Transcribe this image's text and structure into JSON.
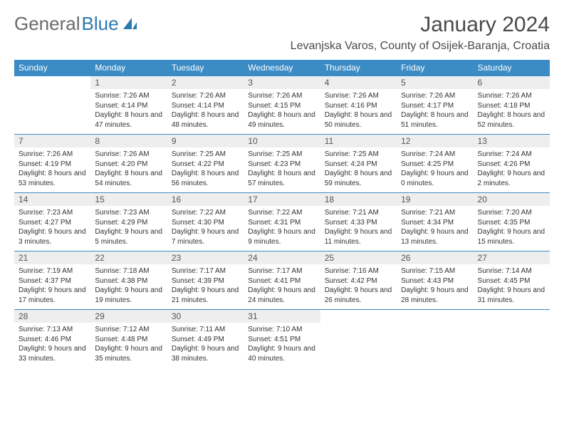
{
  "logo": {
    "word1": "General",
    "word2": "Blue"
  },
  "title": {
    "month": "January 2024",
    "location": "Levanjska Varos, County of Osijek-Baranja, Croatia"
  },
  "colors": {
    "headerBg": "#3b8bc4",
    "headerText": "#ffffff",
    "dayNumBg": "#eeeeee",
    "rowLine": "#3b8bc4",
    "logoGray": "#6b6b6b",
    "logoBlue": "#2a7ab0"
  },
  "weekdays": [
    "Sunday",
    "Monday",
    "Tuesday",
    "Wednesday",
    "Thursday",
    "Friday",
    "Saturday"
  ],
  "weeks": [
    [
      {
        "n": "",
        "sr": "",
        "ss": "",
        "dl": ""
      },
      {
        "n": "1",
        "sr": "Sunrise: 7:26 AM",
        "ss": "Sunset: 4:14 PM",
        "dl": "Daylight: 8 hours and 47 minutes."
      },
      {
        "n": "2",
        "sr": "Sunrise: 7:26 AM",
        "ss": "Sunset: 4:14 PM",
        "dl": "Daylight: 8 hours and 48 minutes."
      },
      {
        "n": "3",
        "sr": "Sunrise: 7:26 AM",
        "ss": "Sunset: 4:15 PM",
        "dl": "Daylight: 8 hours and 49 minutes."
      },
      {
        "n": "4",
        "sr": "Sunrise: 7:26 AM",
        "ss": "Sunset: 4:16 PM",
        "dl": "Daylight: 8 hours and 50 minutes."
      },
      {
        "n": "5",
        "sr": "Sunrise: 7:26 AM",
        "ss": "Sunset: 4:17 PM",
        "dl": "Daylight: 8 hours and 51 minutes."
      },
      {
        "n": "6",
        "sr": "Sunrise: 7:26 AM",
        "ss": "Sunset: 4:18 PM",
        "dl": "Daylight: 8 hours and 52 minutes."
      }
    ],
    [
      {
        "n": "7",
        "sr": "Sunrise: 7:26 AM",
        "ss": "Sunset: 4:19 PM",
        "dl": "Daylight: 8 hours and 53 minutes."
      },
      {
        "n": "8",
        "sr": "Sunrise: 7:26 AM",
        "ss": "Sunset: 4:20 PM",
        "dl": "Daylight: 8 hours and 54 minutes."
      },
      {
        "n": "9",
        "sr": "Sunrise: 7:25 AM",
        "ss": "Sunset: 4:22 PM",
        "dl": "Daylight: 8 hours and 56 minutes."
      },
      {
        "n": "10",
        "sr": "Sunrise: 7:25 AM",
        "ss": "Sunset: 4:23 PM",
        "dl": "Daylight: 8 hours and 57 minutes."
      },
      {
        "n": "11",
        "sr": "Sunrise: 7:25 AM",
        "ss": "Sunset: 4:24 PM",
        "dl": "Daylight: 8 hours and 59 minutes."
      },
      {
        "n": "12",
        "sr": "Sunrise: 7:24 AM",
        "ss": "Sunset: 4:25 PM",
        "dl": "Daylight: 9 hours and 0 minutes."
      },
      {
        "n": "13",
        "sr": "Sunrise: 7:24 AM",
        "ss": "Sunset: 4:26 PM",
        "dl": "Daylight: 9 hours and 2 minutes."
      }
    ],
    [
      {
        "n": "14",
        "sr": "Sunrise: 7:23 AM",
        "ss": "Sunset: 4:27 PM",
        "dl": "Daylight: 9 hours and 3 minutes."
      },
      {
        "n": "15",
        "sr": "Sunrise: 7:23 AM",
        "ss": "Sunset: 4:29 PM",
        "dl": "Daylight: 9 hours and 5 minutes."
      },
      {
        "n": "16",
        "sr": "Sunrise: 7:22 AM",
        "ss": "Sunset: 4:30 PM",
        "dl": "Daylight: 9 hours and 7 minutes."
      },
      {
        "n": "17",
        "sr": "Sunrise: 7:22 AM",
        "ss": "Sunset: 4:31 PM",
        "dl": "Daylight: 9 hours and 9 minutes."
      },
      {
        "n": "18",
        "sr": "Sunrise: 7:21 AM",
        "ss": "Sunset: 4:33 PM",
        "dl": "Daylight: 9 hours and 11 minutes."
      },
      {
        "n": "19",
        "sr": "Sunrise: 7:21 AM",
        "ss": "Sunset: 4:34 PM",
        "dl": "Daylight: 9 hours and 13 minutes."
      },
      {
        "n": "20",
        "sr": "Sunrise: 7:20 AM",
        "ss": "Sunset: 4:35 PM",
        "dl": "Daylight: 9 hours and 15 minutes."
      }
    ],
    [
      {
        "n": "21",
        "sr": "Sunrise: 7:19 AM",
        "ss": "Sunset: 4:37 PM",
        "dl": "Daylight: 9 hours and 17 minutes."
      },
      {
        "n": "22",
        "sr": "Sunrise: 7:18 AM",
        "ss": "Sunset: 4:38 PM",
        "dl": "Daylight: 9 hours and 19 minutes."
      },
      {
        "n": "23",
        "sr": "Sunrise: 7:17 AM",
        "ss": "Sunset: 4:39 PM",
        "dl": "Daylight: 9 hours and 21 minutes."
      },
      {
        "n": "24",
        "sr": "Sunrise: 7:17 AM",
        "ss": "Sunset: 4:41 PM",
        "dl": "Daylight: 9 hours and 24 minutes."
      },
      {
        "n": "25",
        "sr": "Sunrise: 7:16 AM",
        "ss": "Sunset: 4:42 PM",
        "dl": "Daylight: 9 hours and 26 minutes."
      },
      {
        "n": "26",
        "sr": "Sunrise: 7:15 AM",
        "ss": "Sunset: 4:43 PM",
        "dl": "Daylight: 9 hours and 28 minutes."
      },
      {
        "n": "27",
        "sr": "Sunrise: 7:14 AM",
        "ss": "Sunset: 4:45 PM",
        "dl": "Daylight: 9 hours and 31 minutes."
      }
    ],
    [
      {
        "n": "28",
        "sr": "Sunrise: 7:13 AM",
        "ss": "Sunset: 4:46 PM",
        "dl": "Daylight: 9 hours and 33 minutes."
      },
      {
        "n": "29",
        "sr": "Sunrise: 7:12 AM",
        "ss": "Sunset: 4:48 PM",
        "dl": "Daylight: 9 hours and 35 minutes."
      },
      {
        "n": "30",
        "sr": "Sunrise: 7:11 AM",
        "ss": "Sunset: 4:49 PM",
        "dl": "Daylight: 9 hours and 38 minutes."
      },
      {
        "n": "31",
        "sr": "Sunrise: 7:10 AM",
        "ss": "Sunset: 4:51 PM",
        "dl": "Daylight: 9 hours and 40 minutes."
      },
      {
        "n": "",
        "sr": "",
        "ss": "",
        "dl": ""
      },
      {
        "n": "",
        "sr": "",
        "ss": "",
        "dl": ""
      },
      {
        "n": "",
        "sr": "",
        "ss": "",
        "dl": ""
      }
    ]
  ]
}
